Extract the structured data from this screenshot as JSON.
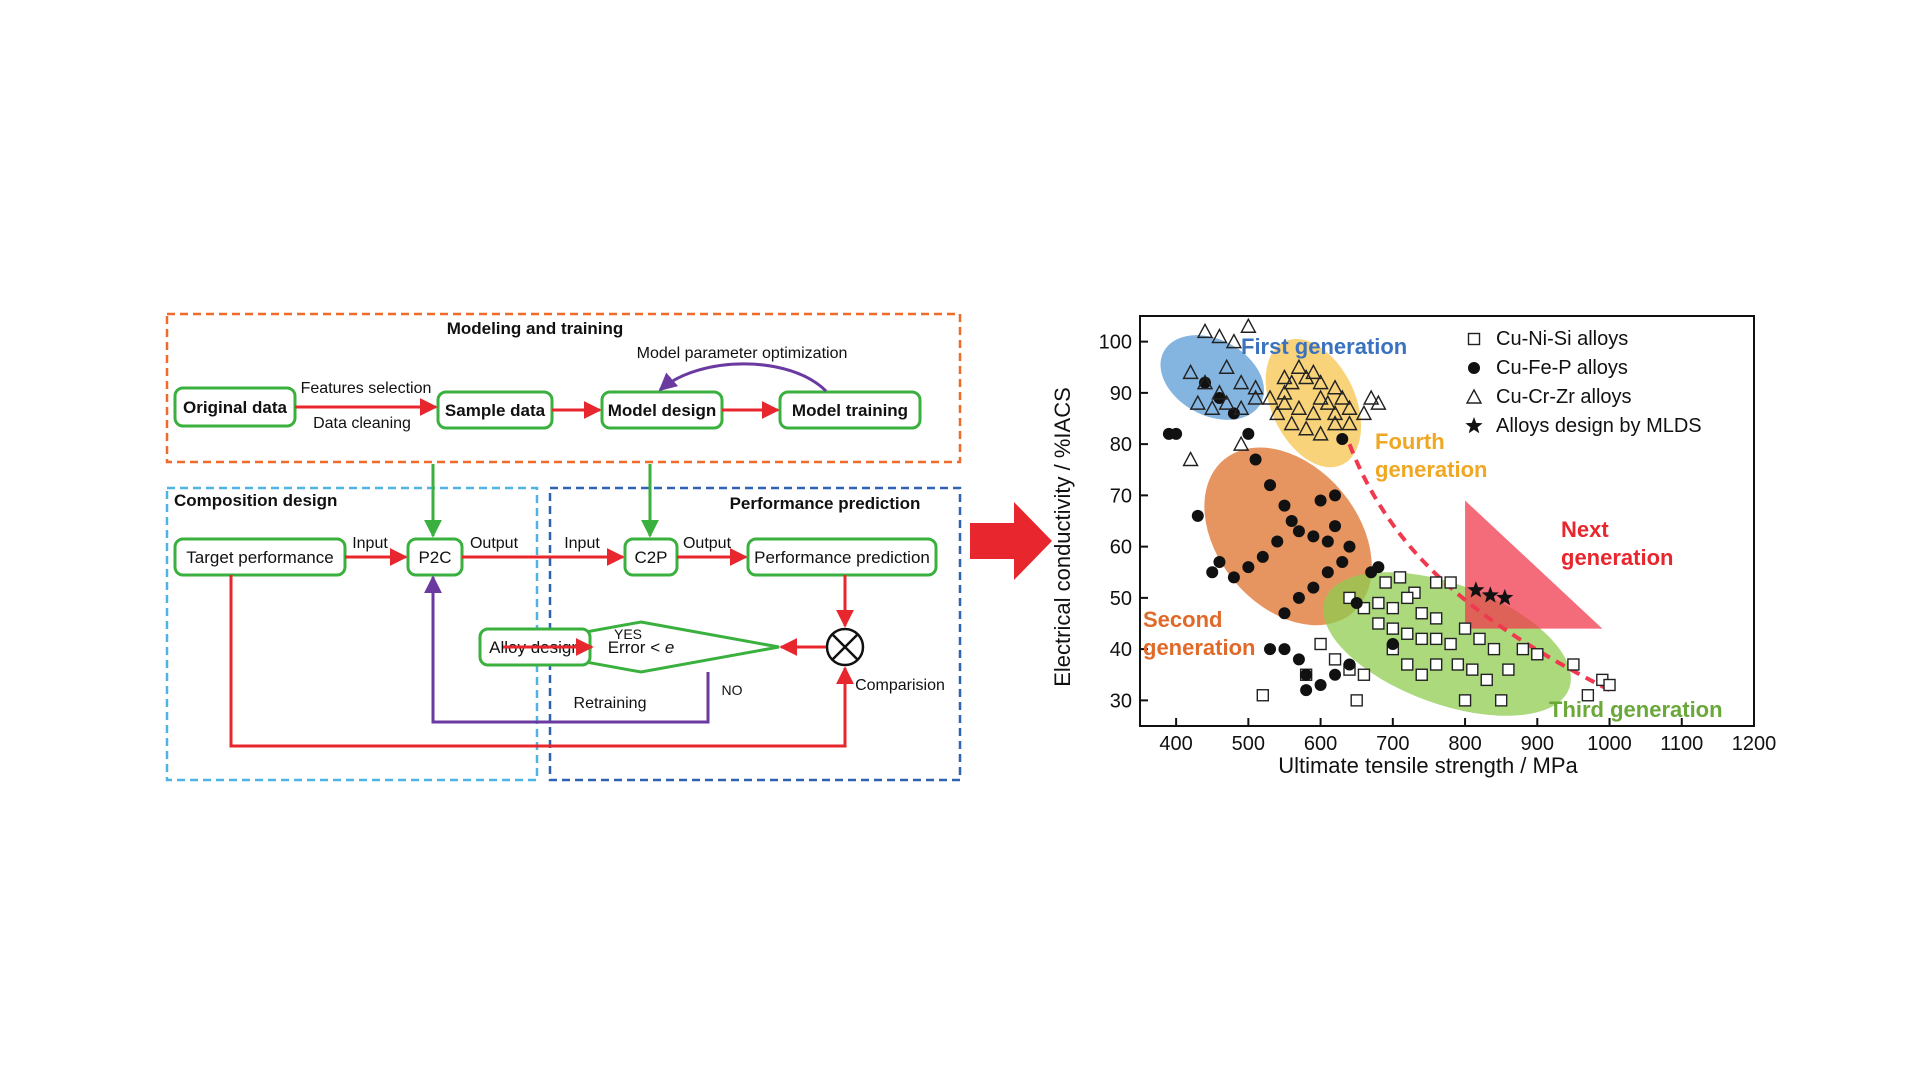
{
  "flowchart": {
    "modeling": {
      "title": "Modeling and training",
      "optimization_label": "Model parameter optimization",
      "original_data": "Original data",
      "features_label": "Features selection",
      "cleaning_label": "Data cleaning",
      "sample_data": "Sample data",
      "model_design": "Model design",
      "model_training": "Model training"
    },
    "composition": {
      "title": "Composition design",
      "target": "Target performance",
      "input_label": "Input",
      "p2c": "P2C",
      "output_label": "Output",
      "alloy_design": "Alloy design",
      "retraining_label": "Retraining"
    },
    "performance": {
      "title": "Performance prediction",
      "input_label": "Input",
      "c2p": "C2P",
      "output_label": "Output",
      "prediction": "Performance prediction",
      "error_prefix": "Error < ",
      "error_var": "e",
      "yes_label": "YES",
      "no_label": "NO",
      "comparison_label": "Comparision"
    }
  },
  "colors": {
    "red_arrow": "#e8262d",
    "green_box": "#3ab03e",
    "purple_arrow": "#6a3aa0",
    "orange_dash": "#f06a2a",
    "light_blue_dash": "#4fb3e6",
    "dark_blue_dash": "#2f62b0",
    "first_gen": "#5b9bd5",
    "second_gen": "#e07a3a",
    "third_gen": "#8fcc50",
    "fourth_gen": "#f5c142",
    "next_gen": "#f0394e"
  },
  "chart_data": {
    "type": "scatter",
    "xlabel": "Ultimate tensile strength / MPa",
    "ylabel": "Electrical conductivity / %IACS",
    "xlim": [
      350,
      1200
    ],
    "ylim": [
      25,
      105
    ],
    "xticks": [
      400,
      500,
      600,
      700,
      800,
      900,
      1000,
      1100,
      1200
    ],
    "yticks": [
      30,
      40,
      50,
      60,
      70,
      80,
      90,
      100
    ],
    "legend": [
      "Cu-Ni-Si alloys",
      "Cu-Fe-P alloys",
      "Cu-Cr-Zr alloys",
      "Alloys design by MLDS"
    ],
    "legend_position": "top-right",
    "region_labels": {
      "first": "First generation",
      "second_a": "Second",
      "second_b": "generation",
      "third": "Third generation",
      "fourth_a": "Fourth",
      "fourth_b": "generation",
      "next_a": "Next",
      "next_b": "generation"
    },
    "series": [
      {
        "name": "Cu-Ni-Si alloys",
        "points": [
          [
            690,
            53
          ],
          [
            710,
            54
          ],
          [
            730,
            51
          ],
          [
            760,
            53
          ],
          [
            780,
            53
          ],
          [
            640,
            50
          ],
          [
            660,
            48
          ],
          [
            680,
            49
          ],
          [
            700,
            48
          ],
          [
            720,
            50
          ],
          [
            740,
            47
          ],
          [
            760,
            46
          ],
          [
            680,
            45
          ],
          [
            700,
            44
          ],
          [
            720,
            43
          ],
          [
            740,
            42
          ],
          [
            760,
            42
          ],
          [
            780,
            41
          ],
          [
            800,
            44
          ],
          [
            820,
            42
          ],
          [
            840,
            40
          ],
          [
            860,
            36
          ],
          [
            880,
            40
          ],
          [
            700,
            40
          ],
          [
            720,
            37
          ],
          [
            740,
            35
          ],
          [
            760,
            37
          ],
          [
            790,
            37
          ],
          [
            810,
            36
          ],
          [
            830,
            34
          ],
          [
            600,
            41
          ],
          [
            620,
            38
          ],
          [
            640,
            36
          ],
          [
            660,
            35
          ],
          [
            580,
            35
          ],
          [
            650,
            30
          ],
          [
            520,
            31
          ],
          [
            800,
            30
          ],
          [
            850,
            30
          ],
          [
            900,
            39
          ],
          [
            950,
            37
          ],
          [
            970,
            31
          ],
          [
            990,
            34
          ],
          [
            1000,
            33
          ]
        ]
      },
      {
        "name": "Cu-Fe-P alloys",
        "points": [
          [
            390,
            82
          ],
          [
            400,
            82
          ],
          [
            440,
            92
          ],
          [
            460,
            89
          ],
          [
            480,
            86
          ],
          [
            500,
            82
          ],
          [
            510,
            77
          ],
          [
            530,
            72
          ],
          [
            550,
            68
          ],
          [
            560,
            65
          ],
          [
            570,
            63
          ],
          [
            590,
            62
          ],
          [
            610,
            61
          ],
          [
            540,
            61
          ],
          [
            520,
            58
          ],
          [
            500,
            56
          ],
          [
            480,
            54
          ],
          [
            460,
            57
          ],
          [
            430,
            66
          ],
          [
            450,
            55
          ],
          [
            600,
            69
          ],
          [
            620,
            64
          ],
          [
            640,
            60
          ],
          [
            630,
            57
          ],
          [
            610,
            55
          ],
          [
            590,
            52
          ],
          [
            570,
            50
          ],
          [
            550,
            47
          ],
          [
            530,
            40
          ],
          [
            550,
            40
          ],
          [
            570,
            38
          ],
          [
            580,
            35
          ],
          [
            600,
            33
          ],
          [
            620,
            35
          ],
          [
            670,
            55
          ],
          [
            680,
            56
          ],
          [
            650,
            49
          ],
          [
            700,
            41
          ],
          [
            640,
            37
          ],
          [
            580,
            32
          ],
          [
            620,
            70
          ],
          [
            630,
            81
          ]
        ]
      },
      {
        "name": "Cu-Cr-Zr alloys",
        "points": [
          [
            440,
            102
          ],
          [
            460,
            101
          ],
          [
            480,
            100
          ],
          [
            500,
            103
          ],
          [
            420,
            94
          ],
          [
            440,
            92
          ],
          [
            460,
            90
          ],
          [
            470,
            95
          ],
          [
            490,
            92
          ],
          [
            510,
            91
          ],
          [
            430,
            88
          ],
          [
            450,
            87
          ],
          [
            470,
            88
          ],
          [
            490,
            87
          ],
          [
            510,
            89
          ],
          [
            530,
            89
          ],
          [
            550,
            88
          ],
          [
            570,
            87
          ],
          [
            590,
            86
          ],
          [
            610,
            88
          ],
          [
            630,
            89
          ],
          [
            640,
            87
          ],
          [
            550,
            90
          ],
          [
            560,
            92
          ],
          [
            580,
            93
          ],
          [
            600,
            92
          ],
          [
            620,
            91
          ],
          [
            540,
            86
          ],
          [
            560,
            84
          ],
          [
            580,
            83
          ],
          [
            600,
            82
          ],
          [
            620,
            84
          ],
          [
            640,
            84
          ],
          [
            550,
            93
          ],
          [
            570,
            95
          ],
          [
            590,
            94
          ],
          [
            600,
            89
          ],
          [
            620,
            86
          ],
          [
            660,
            86
          ],
          [
            670,
            89
          ],
          [
            680,
            88
          ],
          [
            420,
            77
          ],
          [
            490,
            80
          ]
        ]
      },
      {
        "name": "Alloys design by MLDS",
        "points": [
          [
            815,
            51.5
          ],
          [
            835,
            50.5
          ],
          [
            855,
            50
          ]
        ]
      }
    ]
  }
}
